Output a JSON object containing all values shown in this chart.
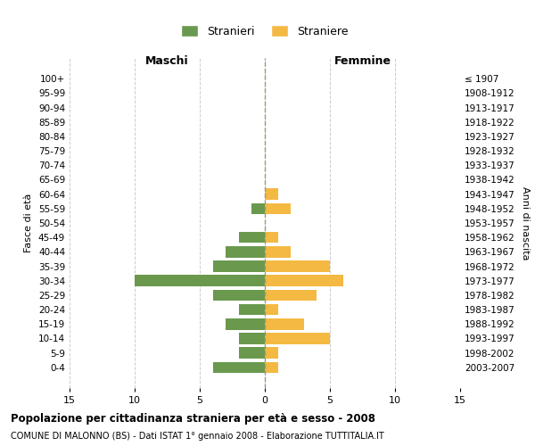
{
  "age_groups": [
    "0-4",
    "5-9",
    "10-14",
    "15-19",
    "20-24",
    "25-29",
    "30-34",
    "35-39",
    "40-44",
    "45-49",
    "50-54",
    "55-59",
    "60-64",
    "65-69",
    "70-74",
    "75-79",
    "80-84",
    "85-89",
    "90-94",
    "95-99",
    "100+"
  ],
  "birth_years": [
    "2003-2007",
    "1998-2002",
    "1993-1997",
    "1988-1992",
    "1983-1987",
    "1978-1982",
    "1973-1977",
    "1968-1972",
    "1963-1967",
    "1958-1962",
    "1953-1957",
    "1948-1952",
    "1943-1947",
    "1938-1942",
    "1933-1937",
    "1928-1932",
    "1923-1927",
    "1918-1922",
    "1913-1917",
    "1908-1912",
    "≤ 1907"
  ],
  "males": [
    4,
    2,
    2,
    3,
    2,
    4,
    10,
    4,
    3,
    2,
    0,
    1,
    0,
    0,
    0,
    0,
    0,
    0,
    0,
    0,
    0
  ],
  "females": [
    1,
    1,
    5,
    3,
    1,
    4,
    6,
    5,
    2,
    1,
    0,
    2,
    1,
    0,
    0,
    0,
    0,
    0,
    0,
    0,
    0
  ],
  "male_color": "#6a994e",
  "female_color": "#f4b942",
  "bar_height": 0.78,
  "xlim": [
    -15,
    15
  ],
  "xticks": [
    -15,
    -10,
    -5,
    0,
    5,
    10,
    15
  ],
  "xticklabels": [
    "15",
    "10",
    "5",
    "0",
    "5",
    "10",
    "15"
  ],
  "title": "Popolazione per cittadinanza straniera per età e sesso - 2008",
  "subtitle": "COMUNE DI MALONNO (BS) - Dati ISTAT 1° gennaio 2008 - Elaborazione TUTTITALIA.IT",
  "ylabel_left": "Fasce di età",
  "ylabel_right": "Anni di nascita",
  "maschi_label": "Maschi",
  "femmine_label": "Femmine",
  "legend_stranieri": "Stranieri",
  "legend_straniere": "Straniere",
  "bg_color": "#ffffff",
  "grid_color": "#cccccc",
  "center_line_color": "#999977"
}
